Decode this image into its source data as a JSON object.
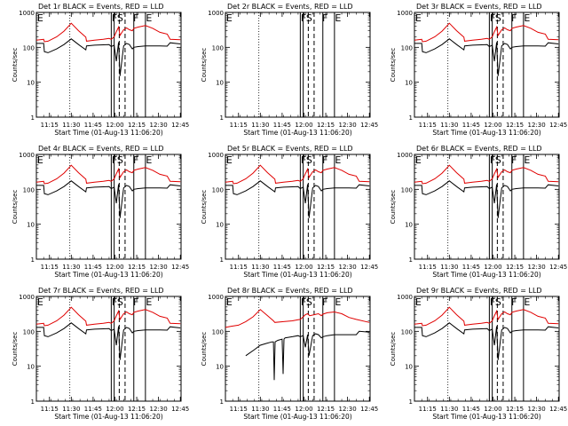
{
  "chart_data": {
    "type": "line",
    "xlabel": "Start Time (01-Aug-13 11:06:20)",
    "ylabel": "Counts/sec",
    "x_tick_labels": [
      "11:15",
      "11:30",
      "11:45",
      "12:00",
      "12:15",
      "12:30",
      "12:45"
    ],
    "x_ticks": [
      9.0,
      24.0,
      39.0,
      54.0,
      69.0,
      84.0,
      99.0
    ],
    "xlim": [
      0,
      99.5
    ],
    "yscale": "log",
    "ylim": [
      1,
      1000
    ],
    "y_tick_labels": [
      "1",
      "10",
      "100",
      "1000"
    ],
    "y_ticks": [
      1,
      10,
      100,
      1000
    ],
    "series_colors": {
      "events": "#000000",
      "lld": "#e00000"
    },
    "marker_labels": [
      "E",
      "F",
      "S",
      "F",
      "E"
    ],
    "panels": [
      {
        "title": "Det 1r BLACK = Events, RED = LLD",
        "variant": "normal",
        "lines": [
          {
            "x": 23,
            "style": "dotted"
          },
          {
            "x": 51.5,
            "style": "solid"
          },
          {
            "x": 53.5,
            "style": "solid"
          },
          {
            "x": 57,
            "style": "dashed"
          },
          {
            "x": 61,
            "style": "dashed"
          },
          {
            "x": 67,
            "style": "solid"
          },
          {
            "x": 75,
            "style": "solid"
          }
        ],
        "labels": [
          {
            "text": "E",
            "x": 0.5
          },
          {
            "text": "F",
            "x": 51.8
          },
          {
            "text": "S",
            "x": 55.5
          },
          {
            "text": "F",
            "x": 66.5
          },
          {
            "text": "E",
            "x": 75.3
          }
        ]
      },
      {
        "title": "Det 2r BLACK = Events, RED = LLD",
        "variant": "empty",
        "lines": [
          {
            "x": 23,
            "style": "dotted"
          },
          {
            "x": 51.5,
            "style": "solid"
          },
          {
            "x": 53.5,
            "style": "solid"
          },
          {
            "x": 57,
            "style": "dashed"
          },
          {
            "x": 61,
            "style": "dashed"
          },
          {
            "x": 67,
            "style": "solid"
          },
          {
            "x": 75,
            "style": "solid"
          }
        ],
        "labels": [
          {
            "text": "E",
            "x": 0.5
          },
          {
            "text": "F",
            "x": 51.8
          },
          {
            "text": "S",
            "x": 55.5
          },
          {
            "text": "F",
            "x": 66.5
          },
          {
            "text": "E",
            "x": 75.3
          }
        ]
      },
      {
        "title": "Det 3r BLACK = Events, RED = LLD",
        "variant": "normal",
        "lines": [
          {
            "x": 23,
            "style": "dotted"
          },
          {
            "x": 51.5,
            "style": "solid"
          },
          {
            "x": 53.5,
            "style": "solid"
          },
          {
            "x": 57,
            "style": "dashed"
          },
          {
            "x": 61,
            "style": "dashed"
          },
          {
            "x": 67,
            "style": "solid"
          },
          {
            "x": 75,
            "style": "solid"
          }
        ],
        "labels": [
          {
            "text": "E",
            "x": 0.5
          },
          {
            "text": "F",
            "x": 51.8
          },
          {
            "text": "S",
            "x": 55.5
          },
          {
            "text": "F",
            "x": 66.5
          },
          {
            "text": "E",
            "x": 75.3
          }
        ]
      },
      {
        "title": "Det 4r BLACK = Events, RED = LLD",
        "variant": "normal",
        "lines": [
          {
            "x": 23,
            "style": "dotted"
          },
          {
            "x": 51.5,
            "style": "solid"
          },
          {
            "x": 53.5,
            "style": "solid"
          },
          {
            "x": 57,
            "style": "dashed"
          },
          {
            "x": 61,
            "style": "dashed"
          },
          {
            "x": 67,
            "style": "solid"
          },
          {
            "x": 75,
            "style": "solid"
          }
        ],
        "labels": [
          {
            "text": "E",
            "x": 0.5
          },
          {
            "text": "F",
            "x": 51.8
          },
          {
            "text": "S",
            "x": 55.5
          },
          {
            "text": "F",
            "x": 66.5
          },
          {
            "text": "E",
            "x": 75.3
          }
        ]
      },
      {
        "title": "Det 5r BLACK = Events, RED = LLD",
        "variant": "normal",
        "lines": [
          {
            "x": 23,
            "style": "dotted"
          },
          {
            "x": 51.5,
            "style": "solid"
          },
          {
            "x": 53.5,
            "style": "solid"
          },
          {
            "x": 57,
            "style": "dashed"
          },
          {
            "x": 61,
            "style": "dashed"
          },
          {
            "x": 67,
            "style": "solid"
          },
          {
            "x": 75,
            "style": "solid"
          }
        ],
        "labels": [
          {
            "text": "E",
            "x": 0.5
          },
          {
            "text": "F",
            "x": 51.8
          },
          {
            "text": "S",
            "x": 55.5
          },
          {
            "text": "F",
            "x": 66.5
          },
          {
            "text": "E",
            "x": 75.3
          }
        ]
      },
      {
        "title": "Det 6r BLACK = Events, RED = LLD",
        "variant": "normal",
        "lines": [
          {
            "x": 23,
            "style": "dotted"
          },
          {
            "x": 51.5,
            "style": "solid"
          },
          {
            "x": 53.5,
            "style": "solid"
          },
          {
            "x": 57,
            "style": "dashed"
          },
          {
            "x": 61,
            "style": "dashed"
          },
          {
            "x": 67,
            "style": "solid"
          },
          {
            "x": 75,
            "style": "solid"
          }
        ],
        "labels": [
          {
            "text": "E",
            "x": 0.5
          },
          {
            "text": "F",
            "x": 51.8
          },
          {
            "text": "S",
            "x": 55.5
          },
          {
            "text": "F",
            "x": 66.5
          },
          {
            "text": "E",
            "x": 75.3
          }
        ]
      },
      {
        "title": "Det 7r BLACK = Events, RED = LLD",
        "variant": "normal",
        "lines": [
          {
            "x": 23,
            "style": "dotted"
          },
          {
            "x": 51.5,
            "style": "solid"
          },
          {
            "x": 53.5,
            "style": "solid"
          },
          {
            "x": 57,
            "style": "dashed"
          },
          {
            "x": 61,
            "style": "dashed"
          },
          {
            "x": 67,
            "style": "solid"
          },
          {
            "x": 75,
            "style": "solid"
          }
        ],
        "labels": [
          {
            "text": "E",
            "x": 0.5
          },
          {
            "text": "F",
            "x": 51.8
          },
          {
            "text": "S",
            "x": 55.5
          },
          {
            "text": "F",
            "x": 66.5
          },
          {
            "text": "E",
            "x": 75.3
          }
        ]
      },
      {
        "title": "Det 8r BLACK = Events, RED = LLD",
        "variant": "det8",
        "lines": [
          {
            "x": 23,
            "style": "dotted"
          },
          {
            "x": 51.5,
            "style": "solid"
          },
          {
            "x": 53.5,
            "style": "solid"
          },
          {
            "x": 57,
            "style": "dashed"
          },
          {
            "x": 61,
            "style": "dashed"
          },
          {
            "x": 67,
            "style": "solid"
          },
          {
            "x": 75,
            "style": "solid"
          }
        ],
        "labels": [
          {
            "text": "E",
            "x": 0.5
          },
          {
            "text": "F",
            "x": 51.8
          },
          {
            "text": "S",
            "x": 55.5
          },
          {
            "text": "F",
            "x": 66.5
          },
          {
            "text": "E",
            "x": 75.3
          }
        ]
      },
      {
        "title": "Det 9r BLACK = Events, RED = LLD",
        "variant": "normal",
        "lines": [
          {
            "x": 23,
            "style": "dotted"
          },
          {
            "x": 51.5,
            "style": "solid"
          },
          {
            "x": 53.5,
            "style": "solid"
          },
          {
            "x": 57,
            "style": "dashed"
          },
          {
            "x": 61,
            "style": "dashed"
          },
          {
            "x": 67,
            "style": "solid"
          },
          {
            "x": 75,
            "style": "solid"
          }
        ],
        "labels": [
          {
            "text": "E",
            "x": 0.5
          },
          {
            "text": "F",
            "x": 51.8
          },
          {
            "text": "S",
            "x": 55.5
          },
          {
            "text": "F",
            "x": 66.5
          },
          {
            "text": "E",
            "x": 75.3
          }
        ]
      }
    ],
    "lld_curve": {
      "x": [
        0,
        5,
        5.5,
        8,
        14,
        19,
        24,
        29,
        34,
        34.5,
        40,
        46,
        50,
        51.5,
        53.5,
        55,
        56.5,
        57.5,
        60,
        62,
        64,
        66,
        67,
        70,
        75,
        80,
        85,
        90,
        92,
        99
      ],
      "y": [
        160,
        170,
        145,
        150,
        200,
        290,
        490,
        300,
        195,
        150,
        160,
        170,
        180,
        170,
        200,
        280,
        380,
        220,
        320,
        360,
        320,
        300,
        350,
        380,
        420,
        350,
        270,
        240,
        170,
        165
      ]
    },
    "events_curve": {
      "x": [
        0,
        5,
        5.5,
        8,
        14,
        19,
        24,
        29,
        34,
        34.5,
        40,
        46,
        50,
        51.5,
        53.5,
        55,
        56.5,
        57.5,
        60,
        62,
        64,
        66,
        67,
        70,
        75,
        80,
        85,
        90,
        92,
        99
      ],
      "y": [
        130,
        130,
        75,
        70,
        90,
        120,
        175,
        120,
        85,
        110,
        115,
        118,
        120,
        105,
        115,
        40,
        140,
        15,
        110,
        130,
        120,
        90,
        100,
        105,
        110,
        110,
        110,
        108,
        135,
        125
      ]
    },
    "det8_lld_curve": {
      "x": [
        0,
        4,
        9,
        14,
        19,
        24,
        29,
        33,
        34,
        40,
        46,
        50,
        51.5,
        53.5,
        55,
        56.5,
        58,
        61,
        64,
        66,
        67,
        70,
        75,
        80,
        85,
        90,
        99
      ],
      "y": [
        130,
        140,
        150,
        190,
        260,
        420,
        280,
        200,
        180,
        190,
        200,
        215,
        220,
        260,
        300,
        320,
        280,
        300,
        320,
        280,
        310,
        340,
        360,
        320,
        250,
        220,
        180
      ]
    },
    "det8_events_curve": {
      "x": [
        14,
        20,
        24,
        28,
        32,
        33,
        33.6,
        34.2,
        36,
        39,
        39.7,
        40.3,
        41,
        46,
        50,
        51.5,
        53.5,
        55,
        56.5,
        57.5,
        60,
        62,
        64,
        66,
        67,
        70,
        75,
        80,
        85,
        90,
        92,
        99
      ],
      "y": [
        20,
        30,
        40,
        45,
        50,
        50,
        4,
        50,
        55,
        60,
        6,
        60,
        65,
        70,
        75,
        70,
        75,
        35,
        80,
        20,
        75,
        85,
        80,
        65,
        70,
        75,
        80,
        80,
        80,
        80,
        100,
        95
      ]
    }
  }
}
